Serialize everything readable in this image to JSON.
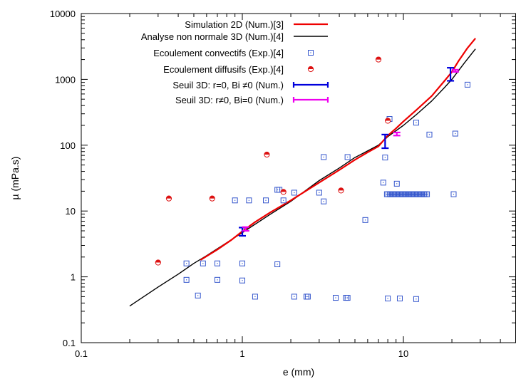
{
  "chart_data": {
    "type": "scatter",
    "xlabel": "e (mm)",
    "ylabel": "µ (mPa.s)",
    "xscale": "log",
    "yscale": "log",
    "xlim": [
      0.1,
      50
    ],
    "ylim": [
      0.1,
      10000
    ],
    "x_ticks": [
      0.1,
      1,
      10
    ],
    "x_tick_labels": [
      "0.1",
      "1",
      "10"
    ],
    "y_ticks": [
      0.1,
      1,
      10,
      100,
      1000,
      10000
    ],
    "y_tick_labels": [
      "0.1",
      "1",
      "10",
      "100",
      "1000",
      "10000"
    ],
    "grid": false,
    "legend_position": "top-center",
    "series": [
      {
        "name": "Simulation 2D (Num.)[3]",
        "kind": "line",
        "color": "#ee0000",
        "x": [
          0.55,
          0.7,
          0.85,
          1.0,
          1.2,
          1.5,
          2.0,
          3.0,
          4.0,
          5.0,
          6.0,
          7.0,
          8.0,
          9.0,
          10.0,
          12.0,
          15.0,
          18.0,
          20.0,
          22.0,
          25.0,
          28.0
        ],
        "y": [
          1.8,
          2.6,
          3.6,
          4.9,
          6.8,
          9.6,
          14.5,
          27.0,
          42.0,
          60.0,
          78.0,
          96.0,
          140.0,
          180.0,
          230.0,
          340.0,
          560.0,
          950.0,
          1300.0,
          1900.0,
          3000.0,
          4200.0
        ]
      },
      {
        "name": "Analyse non normale 3D (Num.)[4]",
        "kind": "line",
        "color": "#000000",
        "x": [
          0.2,
          0.3,
          0.4,
          0.5,
          0.6,
          0.8,
          1.0,
          1.5,
          2.0,
          3.0,
          4.0,
          5.0,
          6.0,
          7.0,
          8.0,
          10.0,
          12.0,
          15.0,
          18.0,
          20.0,
          24.0,
          28.0
        ],
        "y": [
          0.36,
          0.7,
          1.1,
          1.6,
          2.1,
          3.3,
          4.7,
          9.0,
          14.0,
          29.0,
          45.0,
          65.0,
          82.0,
          100.0,
          135.0,
          200.0,
          290.0,
          470.0,
          750.0,
          1000.0,
          1800.0,
          2900.0
        ]
      },
      {
        "name": "Ecoulement convectifs (Exp.)[4]",
        "kind": "scatter",
        "marker": "square",
        "color": "#3355cc",
        "x": [
          0.45,
          0.57,
          0.7,
          1.0,
          0.45,
          0.7,
          1.0,
          1.65,
          0.53,
          1.2,
          2.1,
          2.5,
          2.55,
          3.8,
          4.4,
          4.5,
          8.0,
          9.5,
          12.0,
          0.9,
          1.1,
          1.4,
          1.7,
          1.8,
          2.1,
          3.0,
          3.2,
          1.65,
          3.2,
          4.5,
          5.8,
          7.5,
          7.7,
          8.2,
          12.0,
          14.5,
          21.0,
          20.5,
          25.0,
          9.1
        ],
        "y": [
          1.6,
          1.6,
          1.6,
          1.6,
          0.9,
          0.9,
          0.88,
          1.55,
          0.52,
          0.5,
          0.5,
          0.5,
          0.5,
          0.48,
          0.48,
          0.48,
          0.47,
          0.47,
          0.46,
          14.5,
          14.5,
          14.5,
          21.0,
          14.5,
          19.0,
          19.0,
          14.0,
          21.0,
          66.0,
          66.0,
          7.3,
          27.0,
          65.0,
          250.0,
          220.0,
          145.0,
          150.0,
          18.0,
          830.0,
          26.0
        ]
      },
      {
        "name": "Ecoulement diffusifs (Exp.)[4]",
        "kind": "scatter",
        "marker": "half-circle",
        "color": "#dd1111",
        "x": [
          0.3,
          0.35,
          0.65,
          1.42,
          1.8,
          4.1,
          7.0,
          8.0
        ],
        "y": [
          1.65,
          15.5,
          15.5,
          72.0,
          19.5,
          20.5,
          2000.0,
          235.0
        ]
      },
      {
        "name": "Seuil 3D: r=0, Bi ≠0 (Num.)",
        "kind": "errorbar",
        "color": "#0000dd",
        "x": [
          1.0,
          7.7,
          19.6
        ],
        "y": [
          4.8,
          115.0,
          1200.0
        ],
        "ylow": [
          4.2,
          90.0,
          950.0
        ],
        "yhigh": [
          5.6,
          145.0,
          1500.0
        ]
      },
      {
        "name": "Seuil 3D: r≠0, Bi=0 (Num.)",
        "kind": "errorbar",
        "color": "#ee00ee",
        "x": [
          1.05,
          9.1,
          21.0
        ],
        "y": [
          5.3,
          148.0,
          1350.0
        ],
        "ylow": [
          5.0,
          140.0,
          1300.0
        ],
        "yhigh": [
          5.7,
          156.0,
          1400.0
        ]
      }
    ],
    "conv_dense_row": {
      "x_start": 7.9,
      "x_end": 14.0,
      "count": 28,
      "y": 18.0
    }
  }
}
